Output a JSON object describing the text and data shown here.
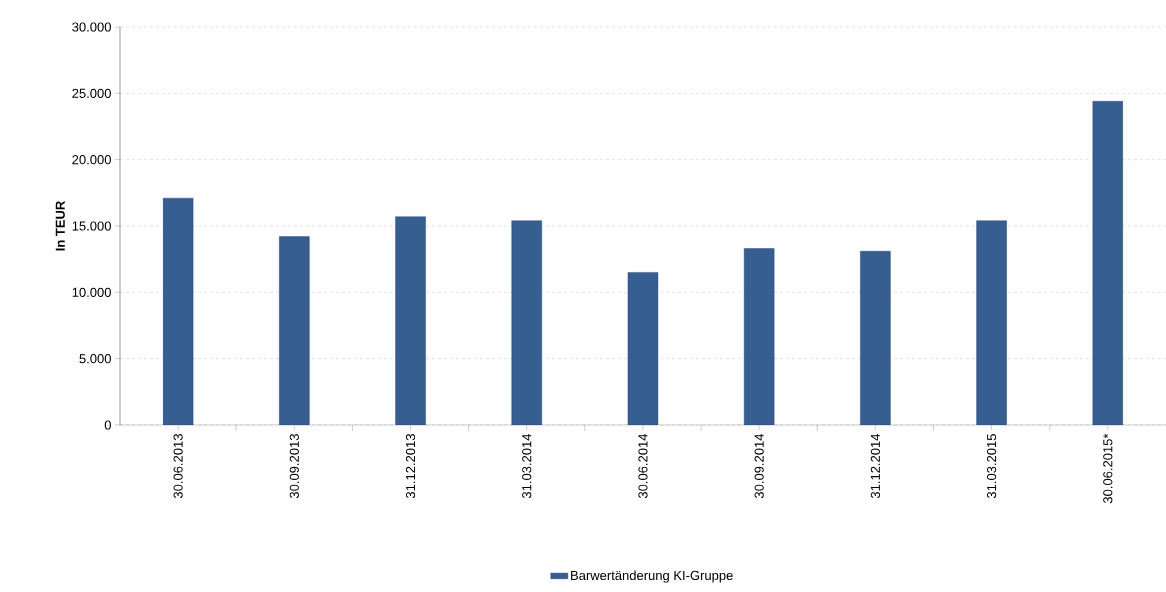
{
  "chart_data": {
    "type": "bar",
    "ylabel": "In TEUR",
    "categories": [
      "30.06.2013",
      "30.09.2013",
      "31.12.2013",
      "31.03.2014",
      "30.06.2014",
      "30.09.2014",
      "31.12.2014",
      "31.03.2015",
      "30.06.2015*"
    ],
    "series": [
      {
        "name": "Barwertänderung KI-Gruppe",
        "color": "#355e91",
        "values": [
          17100,
          14200,
          15700,
          15400,
          11500,
          13300,
          13100,
          15400,
          24400
        ]
      }
    ],
    "ylim": [
      0,
      30000
    ],
    "yticks": [
      {
        "value": 0,
        "label": "0"
      },
      {
        "value": 5000,
        "label": "5.000"
      },
      {
        "value": 10000,
        "label": "10.000"
      },
      {
        "value": 15000,
        "label": "15.000"
      },
      {
        "value": 20000,
        "label": "20.000"
      },
      {
        "value": 25000,
        "label": "25.000"
      },
      {
        "value": 30000,
        "label": "30.000"
      }
    ],
    "grid": "y",
    "legend": "bottom"
  }
}
